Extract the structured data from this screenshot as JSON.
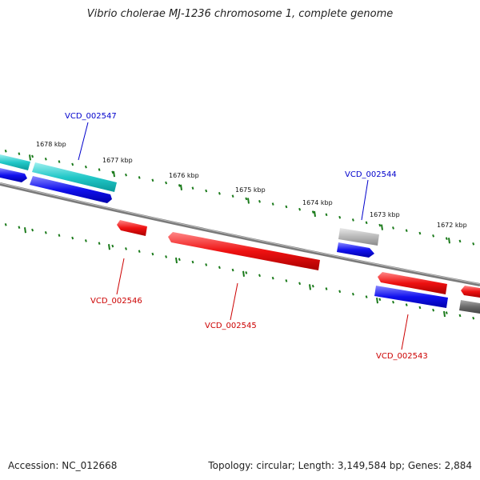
{
  "title": "Vibrio cholerae MJ-1236 chromosome 1, complete genome",
  "footer": {
    "accession": "Accession: NC_012668",
    "summary": "Topology: circular; Length: 3,149,584 bp; Genes: 2,884"
  },
  "colors": {
    "backbone": "#808080",
    "tick": "#1a7a1a",
    "forward_label": "#0000cc",
    "reverse_label": "#cc0000"
  },
  "ticks": [
    {
      "label": "1678 kbp"
    },
    {
      "label": "1677 kbp"
    },
    {
      "label": "1676 kbp"
    },
    {
      "label": "1675 kbp"
    },
    {
      "label": "1674 kbp"
    },
    {
      "label": "1673 kbp"
    },
    {
      "label": "1672 kbp"
    }
  ],
  "genes": [
    {
      "label": "VCD_002547",
      "strand": "forward"
    },
    {
      "label": "VCD_002544",
      "strand": "forward"
    },
    {
      "label": "VCD_002546",
      "strand": "reverse"
    },
    {
      "label": "VCD_002545",
      "strand": "reverse"
    },
    {
      "label": "VCD_002543",
      "strand": "reverse"
    }
  ]
}
